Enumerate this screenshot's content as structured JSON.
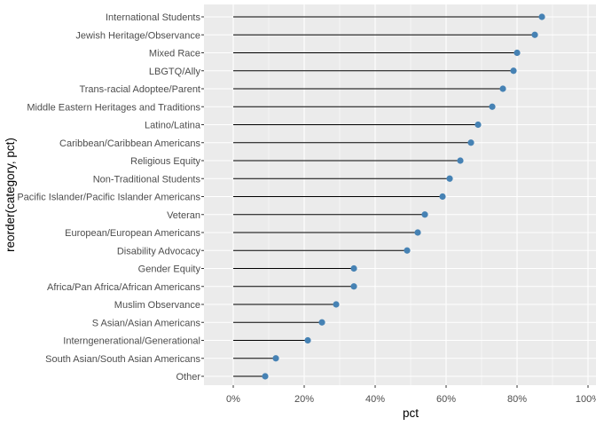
{
  "chart_data": {
    "type": "lollipop",
    "xlabel": "pct",
    "ylabel": "reorder(category, pct)",
    "xlim": [
      0,
      1
    ],
    "x_ticks": [
      0,
      0.2,
      0.4,
      0.6,
      0.8,
      1.0
    ],
    "x_tick_labels": [
      "0%",
      "20%",
      "40%",
      "60%",
      "80%",
      "100%"
    ],
    "categories": [
      "International Students",
      "Jewish Heritage/Observance",
      "Mixed Race",
      "LBGTQ/Ally",
      "Trans-racial Adoptee/Parent",
      "Middle Eastern Heritages and Traditions",
      "Latino/Latina",
      "Caribbean/Caribbean Americans",
      "Religious Equity",
      "Non-Traditional Students",
      "Pacific Islander/Pacific Islander Americans",
      "Veteran",
      "European/European Americans",
      "Disability Advocacy",
      "Gender Equity",
      "Africa/Pan Africa/African Americans",
      "Muslim Observance",
      "S Asian/Asian Americans",
      "Interngenerational/Generational",
      "South Asian/South Asian Americans",
      "Other"
    ],
    "values": [
      0.87,
      0.85,
      0.8,
      0.79,
      0.76,
      0.73,
      0.69,
      0.67,
      0.64,
      0.61,
      0.59,
      0.54,
      0.52,
      0.49,
      0.34,
      0.34,
      0.29,
      0.25,
      0.21,
      0.12,
      0.09
    ],
    "grid": true,
    "colors": {
      "panel_background": "#ebebeb",
      "gridline": "#ffffff",
      "segment": "#000000",
      "point": "#4682b4",
      "tick_text": "#4d4d4d",
      "axis_title": "#000000"
    }
  }
}
